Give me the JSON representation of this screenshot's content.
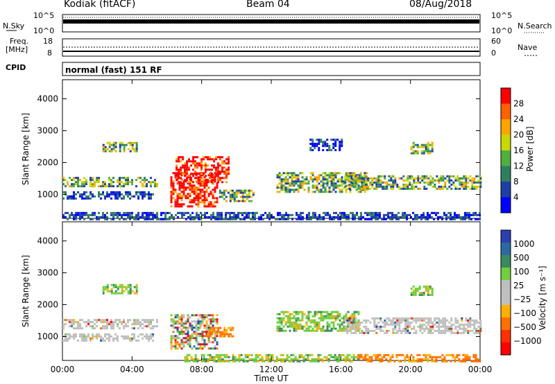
{
  "header": {
    "station": "Kodiak (fitACF)",
    "beam": "Beam 04",
    "date": "08/Aug/2018"
  },
  "status_panels": {
    "nsky_label": "N.Sky",
    "nsky_ticks": [
      "10^5",
      "10^0"
    ],
    "nsearch_label": "N.Search",
    "nsearch_ticks": [
      "10^5",
      "10^0"
    ],
    "freq_label_line1": "Freq.",
    "freq_label_line2": "[MHz]",
    "freq_ticks": [
      "18",
      "8"
    ],
    "nave_label": "Nave",
    "nave_ticks": [
      "60",
      "0"
    ],
    "cpid_label": "CPID",
    "cpid_value": "normal (fast) 151 RF"
  },
  "colors": {
    "power": [
      "#0000ff",
      "#1f3fa8",
      "#2f7f5f",
      "#4faf3f",
      "#c8d800",
      "#ffa500",
      "#ff6000",
      "#ff0000"
    ],
    "velocity": [
      "#2e3fb0",
      "#2a6aa0",
      "#3a8a60",
      "#6fcf3f",
      "#bfbfbf",
      "#c0c0c0",
      "#ffb000",
      "#ff7000",
      "#ff3000",
      "#ff0000"
    ],
    "ground_scatter": "#bfbfbf"
  },
  "chart_data": [
    {
      "type": "heatmap",
      "name": "power",
      "ylabel": "Slant Range [km]",
      "yticks": [
        "1000",
        "2000",
        "3000",
        "4000"
      ],
      "ylim": [
        250,
        4600
      ],
      "xlim_hours": [
        0,
        24
      ],
      "colorbar_label": "Power [dB]",
      "colorbar_ticks": [
        "4",
        "8",
        "12",
        "16",
        "20",
        "24",
        "28"
      ],
      "colorbar_range": [
        0,
        32
      ],
      "features": [
        {
          "t0": 0.0,
          "t1": 5.4,
          "r0": 1250,
          "r1": 1550,
          "level": "medium"
        },
        {
          "t0": 0.0,
          "t1": 5.2,
          "r0": 850,
          "r1": 1100,
          "level": "low"
        },
        {
          "t0": 2.3,
          "t1": 4.3,
          "r0": 2350,
          "r1": 2650,
          "level": "medium"
        },
        {
          "t0": 6.2,
          "t1": 8.9,
          "r0": 600,
          "r1": 1700,
          "level": "high"
        },
        {
          "t0": 6.5,
          "t1": 9.5,
          "r0": 1400,
          "r1": 2200,
          "level": "high"
        },
        {
          "t0": 9.0,
          "t1": 11.0,
          "r0": 800,
          "r1": 1150,
          "level": "medium"
        },
        {
          "t0": 12.3,
          "t1": 17.5,
          "r0": 1100,
          "r1": 1700,
          "level": "medium"
        },
        {
          "t0": 14.2,
          "t1": 16.0,
          "r0": 2400,
          "r1": 2750,
          "level": "low"
        },
        {
          "t0": 16.2,
          "t1": 24.0,
          "r0": 1200,
          "r1": 1600,
          "level": "medium"
        },
        {
          "t0": 20.0,
          "t1": 21.2,
          "r0": 2300,
          "r1": 2650,
          "level": "medium"
        },
        {
          "t0": 0.0,
          "t1": 24.0,
          "r0": 250,
          "r1": 450,
          "level": "low"
        }
      ]
    },
    {
      "type": "heatmap",
      "name": "velocity",
      "ylabel": "Slant Range [km]",
      "yticks": [
        "1000",
        "2000",
        "3000",
        "4000"
      ],
      "ylim": [
        250,
        4600
      ],
      "xlabel": "Time UT",
      "xticks": [
        "00:00",
        "04:00",
        "08:00",
        "12:00",
        "16:00",
        "20:00",
        "00:00"
      ],
      "xlim_hours": [
        0,
        24
      ],
      "colorbar_label": "Velocity [m s⁻¹]",
      "colorbar_ticks": [
        "1000",
        "500",
        "100",
        "25",
        "−25",
        "−100",
        "−500",
        "−1000"
      ],
      "features": [
        {
          "t0": 0.0,
          "t1": 5.4,
          "r0": 1250,
          "r1": 1550,
          "level": "ground"
        },
        {
          "t0": 0.0,
          "t1": 5.2,
          "r0": 850,
          "r1": 1100,
          "level": "ground"
        },
        {
          "t0": 2.3,
          "t1": 4.3,
          "r0": 2350,
          "r1": 2650,
          "level": "positive"
        },
        {
          "t0": 6.2,
          "t1": 8.9,
          "r0": 650,
          "r1": 1700,
          "level": "mixed"
        },
        {
          "t0": 8.3,
          "t1": 9.8,
          "r0": 1000,
          "r1": 1300,
          "level": "negative"
        },
        {
          "t0": 12.3,
          "t1": 17.0,
          "r0": 1200,
          "r1": 1800,
          "level": "positive"
        },
        {
          "t0": 16.2,
          "t1": 24.0,
          "r0": 1100,
          "r1": 1600,
          "level": "ground"
        },
        {
          "t0": 20.0,
          "t1": 21.2,
          "r0": 2300,
          "r1": 2600,
          "level": "positive"
        },
        {
          "t0": 7.0,
          "t1": 17.0,
          "r0": 250,
          "r1": 450,
          "level": "positive"
        },
        {
          "t0": 17.0,
          "t1": 24.0,
          "r0": 250,
          "r1": 450,
          "level": "negative"
        }
      ]
    }
  ]
}
